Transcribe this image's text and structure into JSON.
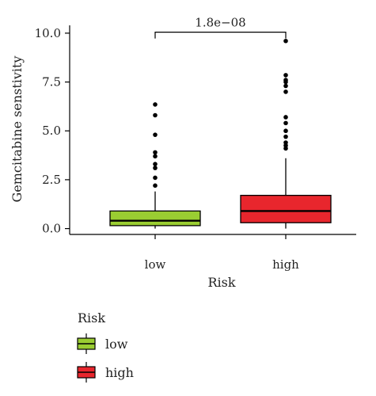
{
  "chart_data": {
    "type": "box",
    "xlabel": "Risk",
    "ylabel": "Gemcitabine senstivity",
    "ylim": [
      -0.3,
      10.4
    ],
    "yticks": [
      "0.0",
      "2.5",
      "5.0",
      "7.5",
      "10.0"
    ],
    "ytick_values": [
      0,
      2.5,
      5,
      7.5,
      10
    ],
    "categories": [
      "low",
      "high"
    ],
    "series": [
      {
        "category": "low",
        "color": "#9acd32",
        "q1": 0.15,
        "median": 0.4,
        "q3": 0.9,
        "whisker_low": 0.0,
        "whisker_high": 1.9,
        "outliers": [
          2.2,
          2.6,
          3.1,
          3.3,
          3.7,
          3.9,
          4.8,
          5.8,
          6.35
        ]
      },
      {
        "category": "high",
        "color": "#e8262d",
        "q1": 0.3,
        "median": 0.9,
        "q3": 1.7,
        "whisker_low": 0.0,
        "whisker_high": 3.6,
        "outliers": [
          4.1,
          4.25,
          4.4,
          4.7,
          5.0,
          5.4,
          5.7,
          7.0,
          7.3,
          7.5,
          7.6,
          7.85,
          9.6
        ]
      }
    ],
    "annotation": {
      "text": "1.8e−08"
    },
    "legend": {
      "title": "Risk",
      "items": [
        {
          "label": "low",
          "color": "#9acd32"
        },
        {
          "label": "high",
          "color": "#e8262d"
        }
      ]
    }
  }
}
